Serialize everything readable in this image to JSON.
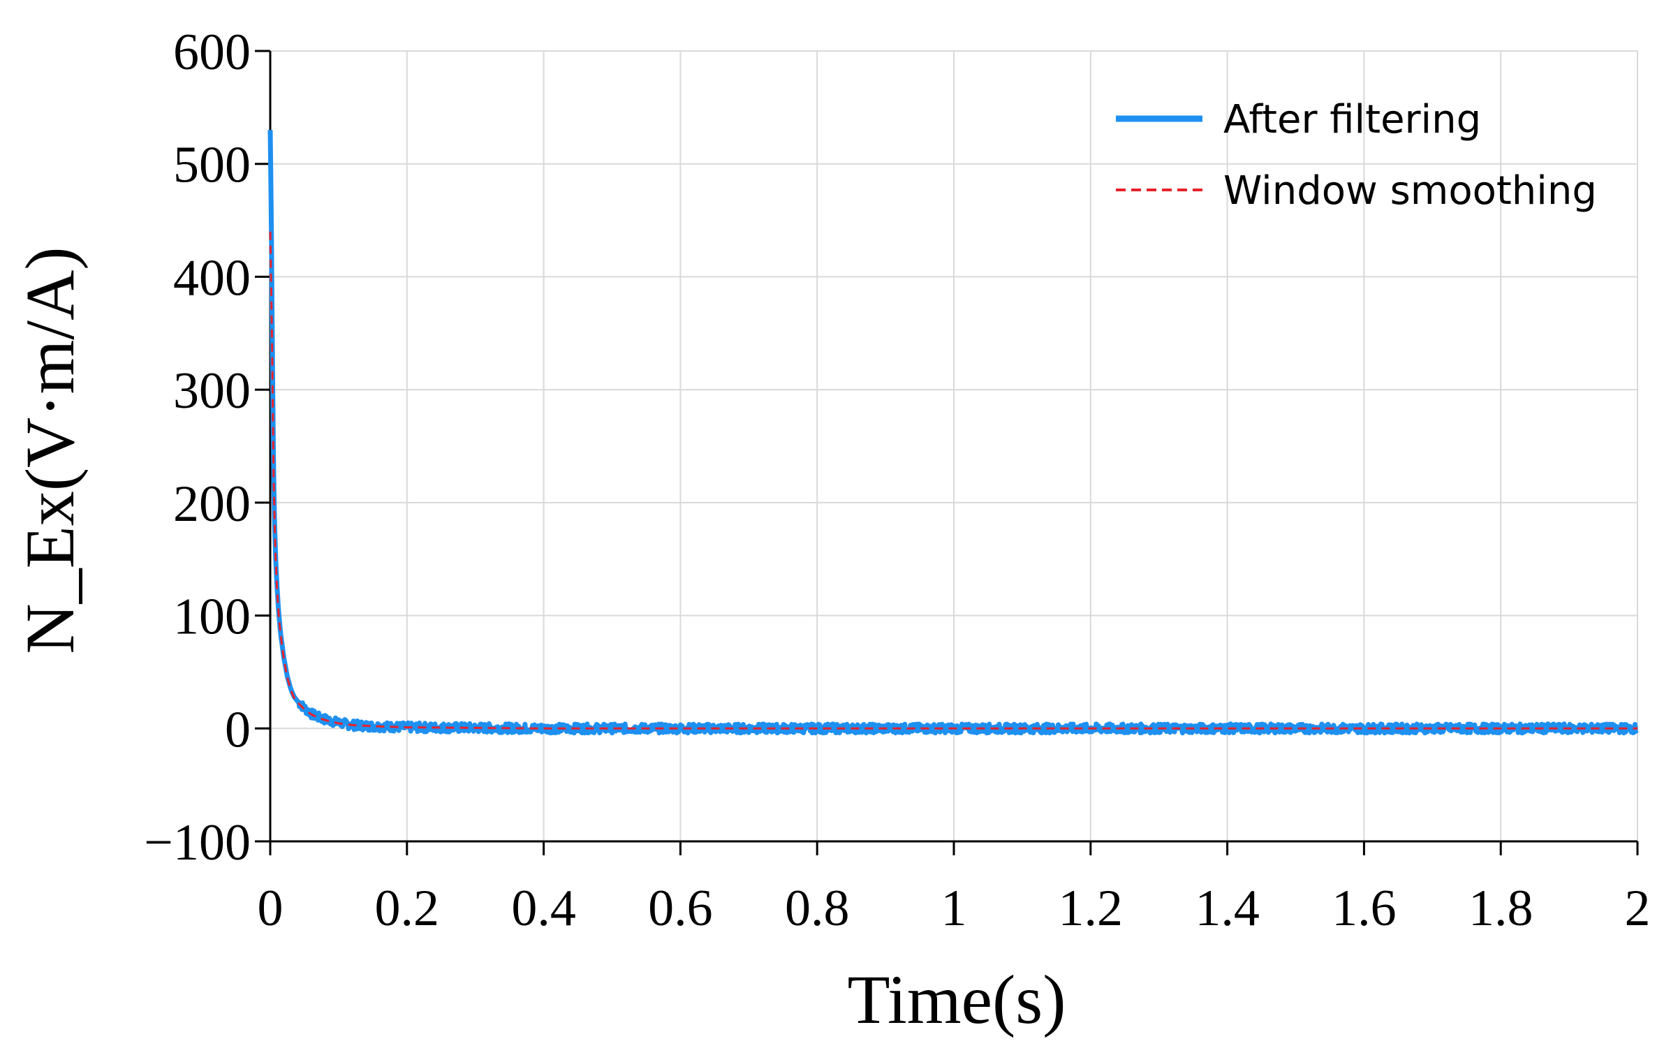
{
  "chart_data": {
    "type": "line",
    "title": "",
    "xlabel": "Time(s)",
    "ylabel": "N_Ex(V·m/A)",
    "xlim": [
      0,
      2
    ],
    "ylim": [
      -100,
      600
    ],
    "xticks": [
      0,
      0.2,
      0.4,
      0.6,
      0.8,
      1,
      1.2,
      1.4,
      1.6,
      1.8,
      2
    ],
    "xtick_labels": [
      "0",
      "0.2",
      "0.4",
      "0.6",
      "0.8",
      "1",
      "1.2",
      "1.4",
      "1.6",
      "1.8",
      "2"
    ],
    "yticks": [
      -100,
      0,
      100,
      200,
      300,
      400,
      500,
      600
    ],
    "ytick_labels": [
      "−100",
      "0",
      "100",
      "200",
      "300",
      "400",
      "500",
      "600"
    ],
    "grid": true,
    "legend_position": "top-right",
    "series": [
      {
        "name": "After filtering",
        "color": "#1E90F0",
        "style": "solid",
        "x": [
          0,
          0.001,
          0.002,
          0.003,
          0.004,
          0.005,
          0.006,
          0.008,
          0.01,
          0.012,
          0.015,
          0.02,
          0.025,
          0.03,
          0.035,
          0.04,
          0.05,
          0.06,
          0.07,
          0.08,
          0.1,
          0.12,
          0.15,
          0.2,
          0.3,
          0.4,
          0.5,
          0.6,
          0.8,
          1.0,
          1.2,
          1.4,
          1.6,
          1.8,
          2.0
        ],
        "y": [
          530,
          480,
          420,
          340,
          280,
          230,
          190,
          150,
          125,
          105,
          85,
          62,
          46,
          35,
          28,
          24,
          18,
          13,
          10,
          8,
          5,
          3,
          2,
          1,
          0.5,
          0,
          0,
          0,
          0,
          0,
          0,
          0,
          0,
          0,
          0
        ],
        "noise_amplitude": 4
      },
      {
        "name": "Window smoothing",
        "color": "#E8212B",
        "style": "dashed",
        "x": [
          0,
          0.001,
          0.002,
          0.003,
          0.004,
          0.005,
          0.006,
          0.008,
          0.01,
          0.012,
          0.015,
          0.02,
          0.025,
          0.03,
          0.035,
          0.04,
          0.05,
          0.06,
          0.07,
          0.08,
          0.1,
          0.12,
          0.15,
          0.2,
          0.3,
          0.4,
          0.5,
          0.6,
          0.8,
          1.0,
          1.2,
          1.4,
          1.6,
          1.8,
          2.0
        ],
        "y": [
          440,
          420,
          380,
          320,
          265,
          220,
          185,
          148,
          122,
          103,
          84,
          61,
          45,
          34,
          27,
          23,
          17,
          12.5,
          9.5,
          7.5,
          4.5,
          3,
          2,
          1,
          0.5,
          0,
          0,
          0,
          0,
          0,
          0,
          0,
          0,
          0,
          0
        ]
      }
    ]
  }
}
